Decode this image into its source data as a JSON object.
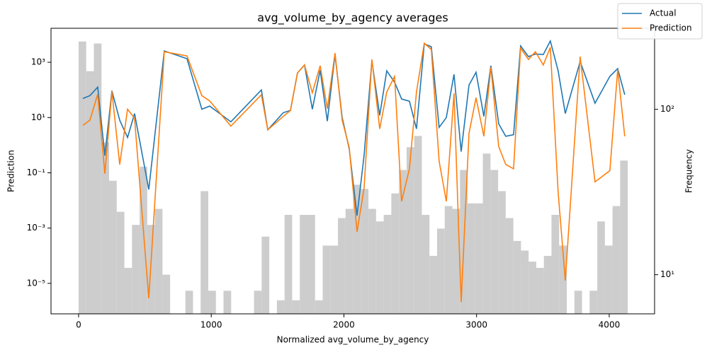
{
  "chart_data": {
    "type": "line",
    "title": "avg_volume_by_agency averages",
    "xlabel": "Normalized avg_volume_by_agency",
    "ylabel": "Prediction",
    "y2label": "Frequency",
    "xlim": [
      -208,
      4342
    ],
    "xticks": [
      0,
      1000,
      2000,
      3000,
      4000
    ],
    "ylim": [
      7.9e-07,
      17000
    ],
    "ylog": true,
    "yticks": [
      {
        "value": 1e-05,
        "label": "10⁻⁵"
      },
      {
        "value": 0.001,
        "label": "10⁻³"
      },
      {
        "value": 0.1,
        "label": "10⁻¹"
      },
      {
        "value": 10,
        "label": "10¹"
      },
      {
        "value": 1000,
        "label": "10³"
      }
    ],
    "y2lim": [
      5.8,
      309
    ],
    "y2log": true,
    "y2ticks": [
      {
        "value": 10,
        "label": "10¹"
      },
      {
        "value": 100,
        "label": "10²"
      }
    ],
    "legend": "upper right",
    "x": [
      32,
      85,
      144,
      198,
      251,
      310,
      369,
      422,
      529,
      646,
      817,
      929,
      988,
      1148,
      1378,
      1426,
      1543,
      1597,
      1650,
      1703,
      1762,
      1821,
      1875,
      1933,
      1987,
      2040,
      2099,
      2152,
      2211,
      2270,
      2323,
      2382,
      2435,
      2494,
      2547,
      2606,
      2659,
      2718,
      2772,
      2830,
      2884,
      2943,
      2996,
      3055,
      3108,
      3167,
      3220,
      3279,
      3332,
      3391,
      3444,
      3503,
      3556,
      3615,
      3669,
      3781,
      3893,
      4005,
      4064,
      4117
    ],
    "series": [
      {
        "name": "Actual",
        "color": "#1f77b4",
        "values": [
          49,
          62,
          126,
          0.42,
          93,
          8,
          1.9,
          14,
          0.025,
          2570,
          1350,
          20,
          26,
          7,
          100,
          3.6,
          15,
          18,
          410,
          800,
          20,
          520,
          7.4,
          1900,
          10,
          0.74,
          0.0028,
          0.42,
          1120,
          12,
          490,
          190,
          47,
          39,
          3.9,
          4670,
          3630,
          4.4,
          10,
          365,
          0.59,
          150,
          435,
          11,
          750,
          5.9,
          2.1,
          2.4,
          3900,
          1600,
          2000,
          1900,
          5900,
          490,
          14,
          1070,
          33,
          310,
          590,
          67
        ]
      },
      {
        "name": "Prediction",
        "color": "#ff7f0e",
        "values": [
          5.2,
          8,
          70,
          0.093,
          88,
          0.2,
          20,
          9.3,
          2.9e-06,
          2400,
          1700,
          62,
          40,
          4.9,
          67,
          3.6,
          11,
          18,
          410,
          800,
          79,
          750,
          21,
          2150,
          8,
          0.83,
          0.00074,
          0.028,
          1270,
          3.9,
          84,
          310,
          0.0093,
          0.14,
          84,
          4900,
          2900,
          0.26,
          0.0093,
          74,
          2.1e-06,
          2.7,
          52,
          2.1,
          660,
          0.89,
          0.2,
          0.14,
          3240,
          1270,
          2400,
          800,
          3460,
          0.02,
          1.26e-05,
          1600,
          0.047,
          0.12,
          550,
          2.1
        ]
      }
    ],
    "histogram": {
      "color": "#c8c8c8",
      "axis": "y2",
      "bins": [
        0,
        57.5,
        115,
        172.5,
        230,
        287.5,
        345,
        402.5,
        460,
        517.5,
        575,
        632.5,
        690,
        747.5,
        805,
        862.5,
        920,
        977.5,
        1035,
        1092.5,
        1150,
        1207.5,
        1265,
        1322.5,
        1380,
        1437.5,
        1495,
        1552.5,
        1610,
        1667.5,
        1725,
        1782.5,
        1840,
        1897.5,
        1955,
        2012.5,
        2070,
        2127.5,
        2185,
        2242.5,
        2300,
        2357.5,
        2415,
        2472.5,
        2530,
        2587.5,
        2645,
        2702.5,
        2760,
        2817.5,
        2875,
        2932.5,
        2990,
        3047.5,
        3105,
        3162.5,
        3220,
        3277.5,
        3335,
        3392.5,
        3450,
        3507.5,
        3565,
        3622.5,
        3680,
        3737.5,
        3795,
        3852.5,
        3910,
        3967.5,
        4025,
        4082.5,
        4140
      ],
      "counts": [
        257,
        170,
        250,
        63,
        37,
        24,
        11,
        20,
        45,
        20,
        25,
        10,
        0,
        0,
        8,
        0,
        32,
        8,
        0,
        8,
        0,
        0,
        0,
        8,
        17,
        0,
        7,
        23,
        7,
        23,
        23,
        7,
        15,
        15,
        22,
        25,
        35,
        33,
        25,
        21,
        23,
        31,
        43,
        59,
        69,
        23,
        13,
        19,
        26,
        25,
        43,
        27,
        27,
        54,
        43,
        32,
        22,
        16,
        14,
        12,
        11,
        13,
        23,
        15,
        0,
        8,
        0,
        8,
        21,
        15,
        26,
        49
      ]
    }
  }
}
